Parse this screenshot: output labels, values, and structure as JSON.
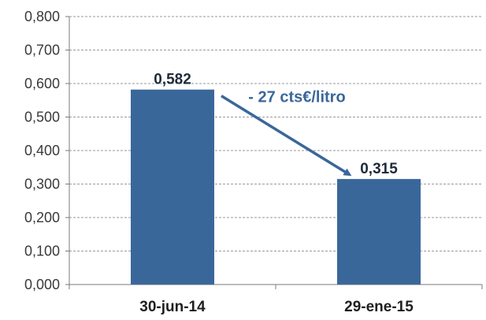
{
  "chart_data": {
    "type": "bar",
    "categories": [
      "30-jun-14",
      "29-ene-15"
    ],
    "values": [
      0.582,
      0.315
    ],
    "data_labels": [
      "0,582",
      "0,315"
    ],
    "ylim": [
      0,
      0.8
    ],
    "y_ticks": [
      0,
      0.1,
      0.2,
      0.3,
      0.4,
      0.5,
      0.6,
      0.7,
      0.8
    ],
    "y_tick_labels": [
      "0,000",
      "0,100",
      "0,200",
      "0,300",
      "0,400",
      "0,500",
      "0,600",
      "0,700",
      "0,800"
    ],
    "grid": true,
    "bar_color": "#3a679a",
    "annotation": {
      "text": "- 27 cts€/litro",
      "color": "#3a679a",
      "style": "arrow from first bar to second bar"
    }
  }
}
